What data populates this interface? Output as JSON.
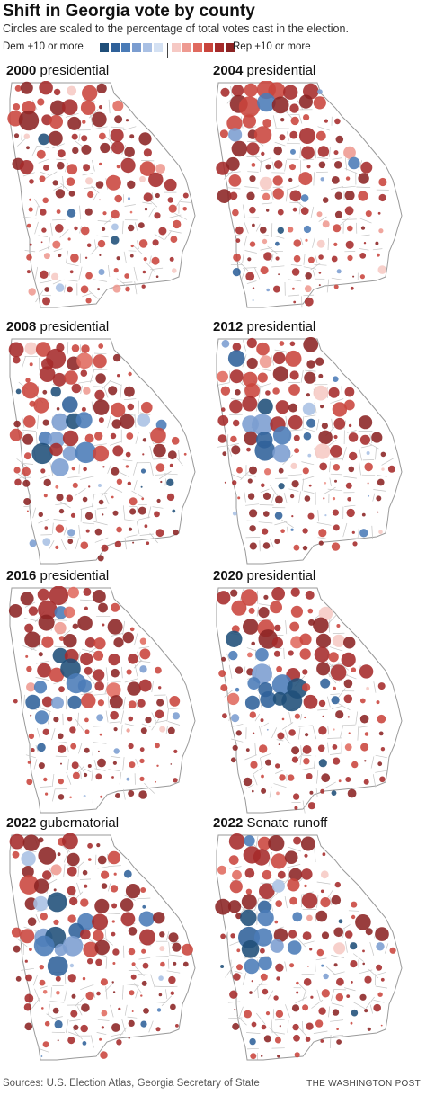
{
  "title": "Shift in Georgia vote by county",
  "subtitle": "Circles are scaled to the percentage of total votes cast in the election.",
  "legend": {
    "left_label": "Dem +10 or more",
    "right_label": "Rep +10 or more",
    "colors": [
      "#1f4e79",
      "#2f619a",
      "#4a7bb7",
      "#7b9dd0",
      "#a9c0e4",
      "#d4e1f3",
      "#f6c9c4",
      "#ee9a91",
      "#e06a5f",
      "#c9443c",
      "#a52a2a",
      "#8b2323"
    ]
  },
  "panels": [
    {
      "year": "2000",
      "type": "presidential",
      "seed": 11
    },
    {
      "year": "2004",
      "type": "presidential",
      "seed": 23
    },
    {
      "year": "2008",
      "type": "presidential",
      "seed": 37
    },
    {
      "year": "2012",
      "type": "presidential",
      "seed": 41
    },
    {
      "year": "2016",
      "type": "presidential",
      "seed": 53
    },
    {
      "year": "2020",
      "type": "presidential",
      "seed": 67
    },
    {
      "year": "2022",
      "type": "gubernatorial",
      "seed": 79
    },
    {
      "year": "2022",
      "type": "Senate runoff",
      "seed": 83
    }
  ],
  "footer": {
    "sources": "Sources: U.S. Election Atlas, Georgia Secretary of State",
    "credit": "THE WASHINGTON POST"
  }
}
